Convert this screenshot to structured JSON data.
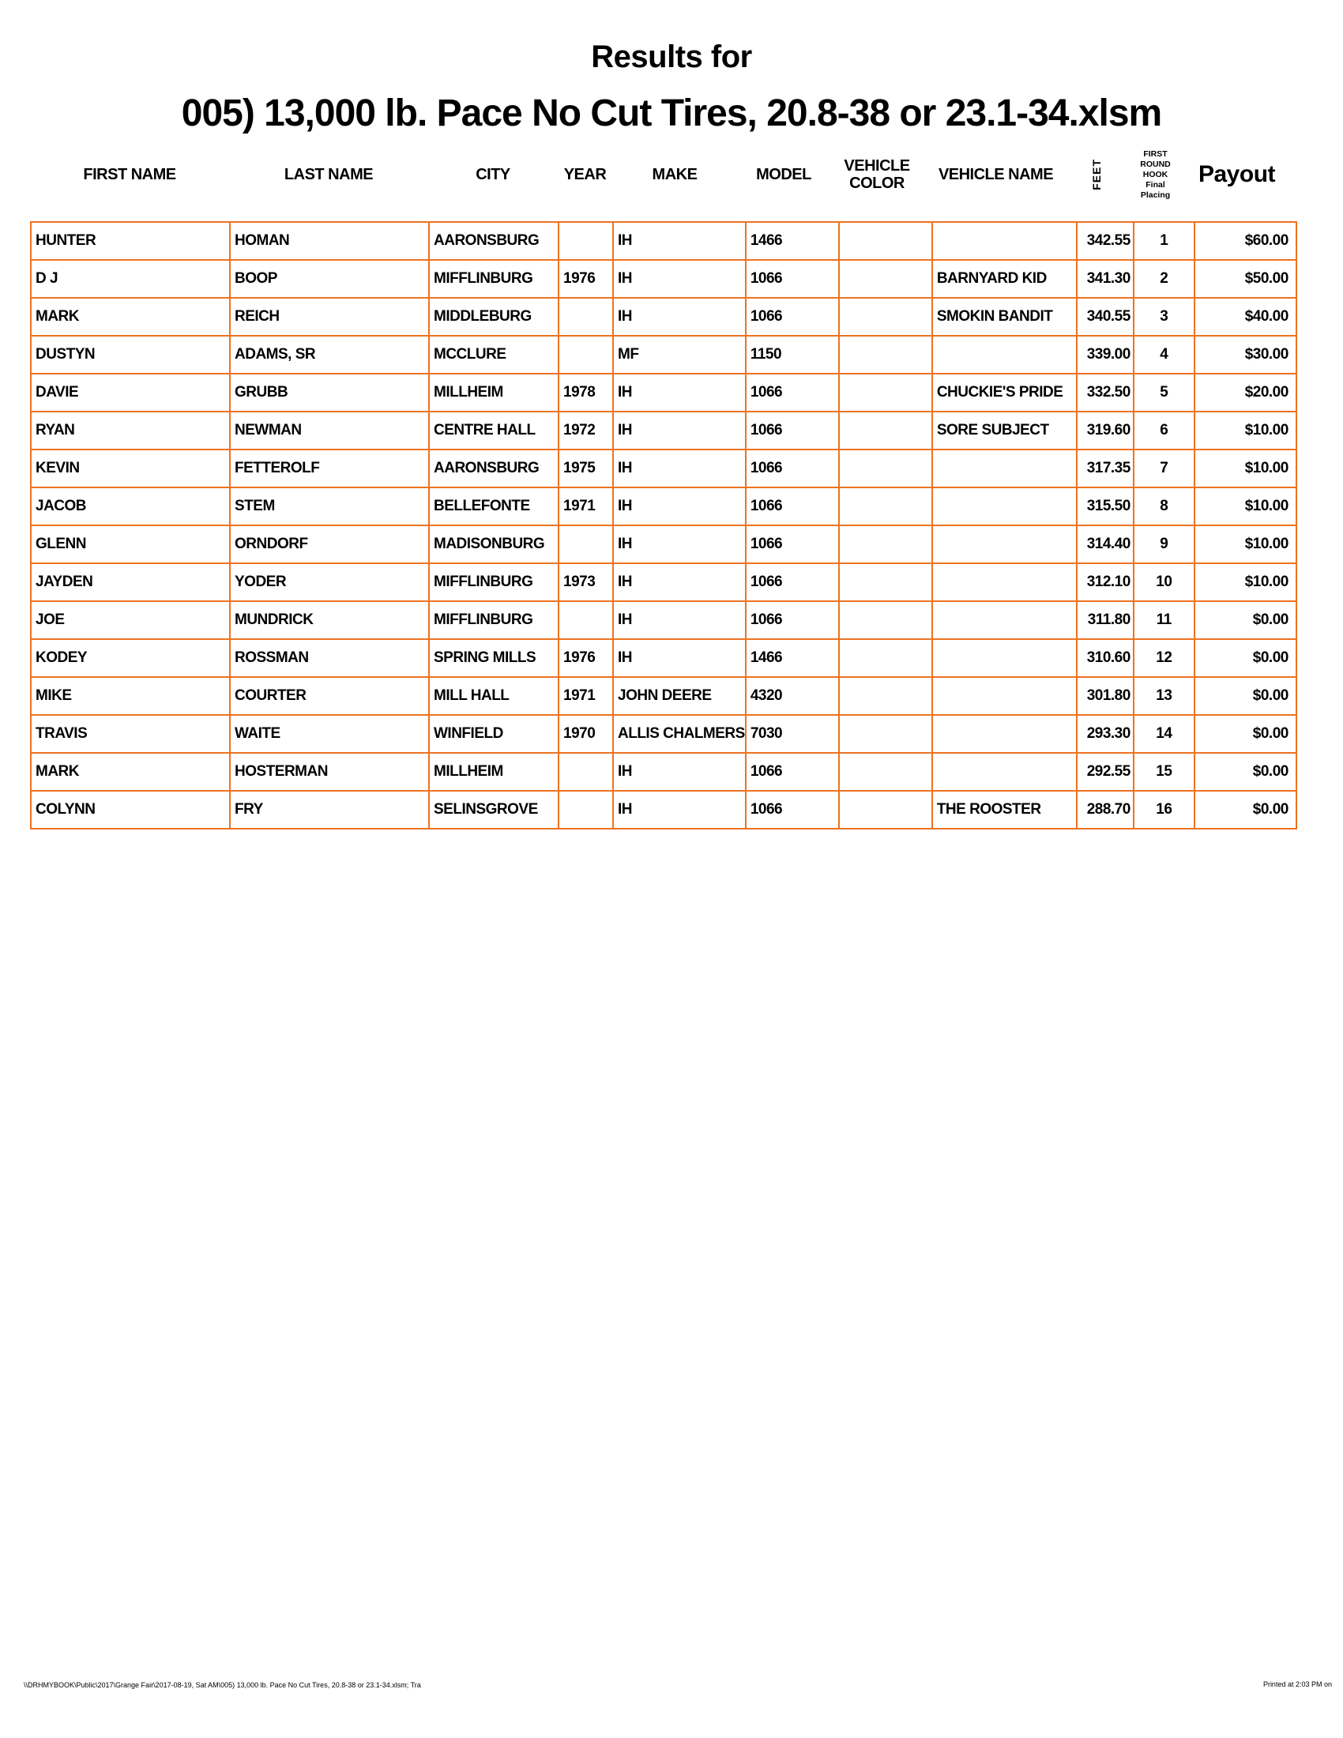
{
  "page": {
    "title_line1": "Results for",
    "title_line2": "005) 13,000 lb. Pace No Cut Tires, 20.8-38 or 23.1-34.xlsm"
  },
  "colors": {
    "table_border": "#ED7220",
    "text": "#000000"
  },
  "table": {
    "columns": [
      {
        "id": "first-name",
        "label": "FIRST NAME"
      },
      {
        "id": "last-name",
        "label": "LAST NAME"
      },
      {
        "id": "city",
        "label": "CITY"
      },
      {
        "id": "year",
        "label": "YEAR"
      },
      {
        "id": "make",
        "label": "MAKE"
      },
      {
        "id": "model",
        "label": "MODEL"
      },
      {
        "id": "vehicle-color",
        "label": "VEHICLE COLOR"
      },
      {
        "id": "vehicle-name",
        "label": "VEHICLE NAME"
      },
      {
        "id": "feet",
        "label": "FEET",
        "rotated": true
      },
      {
        "id": "first-round-hook-final-placing",
        "label_lines": [
          "FIRST",
          "ROUND",
          "HOOK",
          "Final",
          "Placing"
        ]
      },
      {
        "id": "payout",
        "label": "Payout",
        "emphasis": true
      }
    ],
    "rows": [
      [
        "HUNTER",
        "HOMAN",
        "AARONSBURG",
        "",
        "IH",
        "1466",
        "",
        "",
        "342.55",
        "1",
        "$60.00"
      ],
      [
        "D J",
        "BOOP",
        "MIFFLINBURG",
        "1976",
        "IH",
        "1066",
        "",
        "BARNYARD KID",
        "341.30",
        "2",
        "$50.00"
      ],
      [
        "MARK",
        "REICH",
        "MIDDLEBURG",
        "",
        "IH",
        "1066",
        "",
        "SMOKIN BANDIT",
        "340.55",
        "3",
        "$40.00"
      ],
      [
        "DUSTYN",
        "ADAMS, SR",
        "MCCLURE",
        "",
        "MF",
        "1150",
        "",
        "",
        "339.00",
        "4",
        "$30.00"
      ],
      [
        "DAVIE",
        "GRUBB",
        "MILLHEIM",
        "1978",
        "IH",
        "1066",
        "",
        "CHUCKIE'S PRIDE",
        "332.50",
        "5",
        "$20.00"
      ],
      [
        "RYAN",
        "NEWMAN",
        "CENTRE HALL",
        "1972",
        "IH",
        "1066",
        "",
        "SORE SUBJECT",
        "319.60",
        "6",
        "$10.00"
      ],
      [
        "KEVIN",
        "FETTEROLF",
        "AARONSBURG",
        "1975",
        "IH",
        "1066",
        "",
        "",
        "317.35",
        "7",
        "$10.00"
      ],
      [
        "JACOB",
        "STEM",
        "BELLEFONTE",
        "1971",
        "IH",
        "1066",
        "",
        "",
        "315.50",
        "8",
        "$10.00"
      ],
      [
        "GLENN",
        "ORNDORF",
        "MADISONBURG",
        "",
        "IH",
        "1066",
        "",
        "",
        "314.40",
        "9",
        "$10.00"
      ],
      [
        "JAYDEN",
        "YODER",
        "MIFFLINBURG",
        "1973",
        "IH",
        "1066",
        "",
        "",
        "312.10",
        "10",
        "$10.00"
      ],
      [
        "JOE",
        "MUNDRICK",
        "MIFFLINBURG",
        "",
        "IH",
        "1066",
        "",
        "",
        "311.80",
        "11",
        "$0.00"
      ],
      [
        "KODEY",
        "ROSSMAN",
        "SPRING MILLS",
        "1976",
        "IH",
        "1466",
        "",
        "",
        "310.60",
        "12",
        "$0.00"
      ],
      [
        "MIKE",
        "COURTER",
        "MILL HALL",
        "1971",
        "JOHN DEERE",
        "4320",
        "",
        "",
        "301.80",
        "13",
        "$0.00"
      ],
      [
        "TRAVIS",
        "WAITE",
        "WINFIELD",
        "1970",
        "ALLIS CHALMERS",
        "7030",
        "",
        "",
        "293.30",
        "14",
        "$0.00"
      ],
      [
        "MARK",
        "HOSTERMAN",
        "MILLHEIM",
        "",
        "IH",
        "1066",
        "",
        "",
        "292.55",
        "15",
        "$0.00"
      ],
      [
        "COLYNN",
        "FRY",
        "SELINSGROVE",
        "",
        "IH",
        "1066",
        "",
        "THE ROOSTER",
        "288.70",
        "16",
        "$0.00"
      ]
    ]
  },
  "footer": {
    "left": "\\\\DRHMYBOOK\\Public\\2017\\Grange Fair\\2017-08-19, Sat AM\\005) 13,000 lb. Pace No Cut Tires, 20.8-38 or 23.1-34.xlsm; Tra",
    "right": "Printed at 2:03 PM on"
  }
}
